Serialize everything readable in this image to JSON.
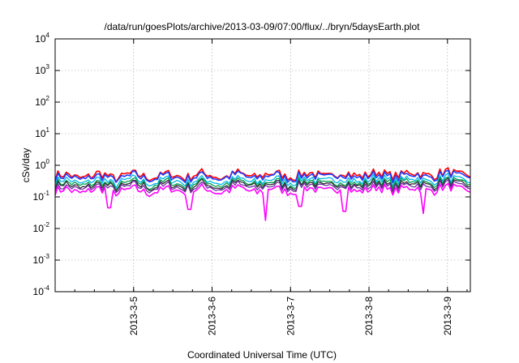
{
  "chart_data": {
    "type": "line",
    "title": "/data/run/goesPlots/archive/2013-03-09/07:00/flux/../bryn/5daysEarth.plot",
    "xlabel": "Coordinated Universal Time (UTC)",
    "ylabel": "cSv/day",
    "yscale": "log",
    "ylim": [
      0.0001,
      10000
    ],
    "xlim": [
      "2013-03-04 00:00",
      "2013-03-09 07:00"
    ],
    "grid": true,
    "y_ticks": [
      {
        "base": "10",
        "exp": "-4"
      },
      {
        "base": "10",
        "exp": "-3"
      },
      {
        "base": "10",
        "exp": "-2"
      },
      {
        "base": "10",
        "exp": "-1"
      },
      {
        "base": "10",
        "exp": "0"
      },
      {
        "base": "10",
        "exp": "1"
      },
      {
        "base": "10",
        "exp": "2"
      },
      {
        "base": "10",
        "exp": "3"
      },
      {
        "base": "10",
        "exp": "4"
      }
    ],
    "x_tick_labels": [
      "2013-3-5",
      "2013-3-6",
      "2013-3-7",
      "2013-3-8",
      "2013-3-9"
    ],
    "x_ticks": [
      "2013-03-05",
      "2013-03-06",
      "2013-03-07",
      "2013-03-08",
      "2013-03-09"
    ],
    "series_color": [
      "#ff0000",
      "#1e3cff",
      "#00b8e8",
      "#00a050",
      "#303030",
      "#7030a0",
      "#ff00ff"
    ],
    "series_level": [
      0.45,
      0.4,
      0.3,
      0.25,
      0.22,
      0.19,
      0.15
    ],
    "dips": [
      {
        "x": "2013-03-04 16:30",
        "y": 0.045
      },
      {
        "x": "2013-03-05 17:00",
        "y": 0.04
      },
      {
        "x": "2013-03-06 16:30",
        "y": 0.018
      },
      {
        "x": "2013-03-07 03:00",
        "y": 0.05
      },
      {
        "x": "2013-03-07 16:30",
        "y": 0.035
      },
      {
        "x": "2013-03-08 16:30",
        "y": 0.03
      }
    ]
  }
}
